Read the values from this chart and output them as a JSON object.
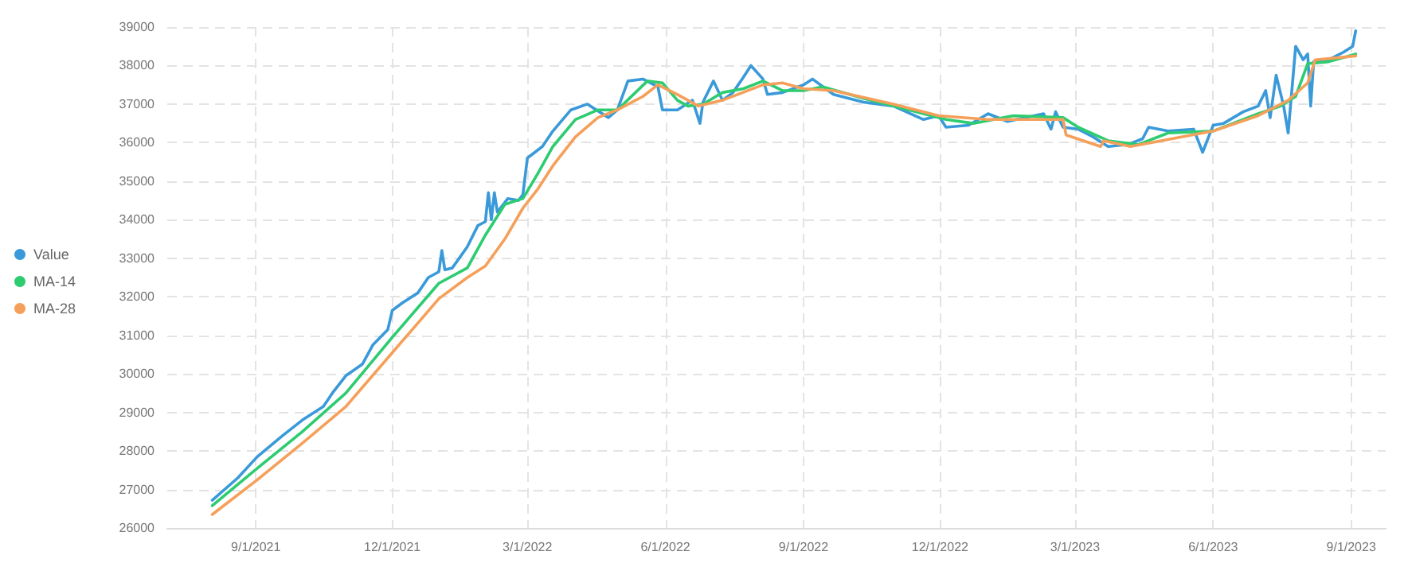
{
  "chart_data": {
    "type": "line",
    "xlim": [
      "2021-07-04",
      "2023-09-24"
    ],
    "xticks": [
      {
        "value": "2021-09-01",
        "label": "9/1/2021"
      },
      {
        "value": "2021-12-01",
        "label": "12/1/2021"
      },
      {
        "value": "2022-03-01",
        "label": "3/1/2022"
      },
      {
        "value": "2022-06-01",
        "label": "6/1/2022"
      },
      {
        "value": "2022-09-01",
        "label": "9/1/2022"
      },
      {
        "value": "2022-12-01",
        "label": "12/1/2022"
      },
      {
        "value": "2023-03-01",
        "label": "3/1/2023"
      },
      {
        "value": "2023-06-01",
        "label": "6/1/2023"
      },
      {
        "value": "2023-09-01",
        "label": "9/1/2023"
      }
    ],
    "ylim": [
      26000,
      39000
    ],
    "yticks": [
      26000,
      27000,
      28000,
      29000,
      30000,
      31000,
      32000,
      33000,
      34000,
      35000,
      36000,
      37000,
      38000,
      39000
    ],
    "grid": true,
    "legend": "left",
    "marker": "none",
    "line_style": "solid",
    "series": [
      {
        "name": "Value",
        "color": "#3a9ad9",
        "x": [
          "2021-08-03",
          "2021-08-20",
          "2021-09-02",
          "2021-09-19",
          "2021-10-02",
          "2021-10-16",
          "2021-10-22",
          "2021-10-31",
          "2021-11-11",
          "2021-11-18",
          "2021-11-28",
          "2021-12-01",
          "2021-12-08",
          "2021-12-18",
          "2021-12-25",
          "2022-01-01",
          "2022-01-03",
          "2022-01-05",
          "2022-01-10",
          "2022-01-20",
          "2022-01-27",
          "2022-02-01",
          "2022-02-03",
          "2022-02-05",
          "2022-02-07",
          "2022-02-09",
          "2022-02-16",
          "2022-02-23",
          "2022-02-26",
          "2022-03-01",
          "2022-03-11",
          "2022-03-18",
          "2022-03-30",
          "2022-04-10",
          "2022-04-24",
          "2022-04-30",
          "2022-05-07",
          "2022-05-17",
          "2022-05-27",
          "2022-05-30",
          "2022-06-09",
          "2022-06-19",
          "2022-06-24",
          "2022-06-26",
          "2022-07-03",
          "2022-07-09",
          "2022-07-16",
          "2022-07-23",
          "2022-07-28",
          "2022-08-05",
          "2022-08-08",
          "2022-08-18",
          "2022-09-01",
          "2022-09-07",
          "2022-09-21",
          "2022-10-11",
          "2022-10-31",
          "2022-11-20",
          "2022-11-30",
          "2022-12-05",
          "2022-12-20",
          "2023-01-02",
          "2023-01-15",
          "2023-02-08",
          "2023-02-13",
          "2023-02-16",
          "2023-02-21",
          "2023-03-03",
          "2023-03-13",
          "2023-03-23",
          "2023-04-05",
          "2023-04-15",
          "2023-04-19",
          "2023-05-02",
          "2023-05-19",
          "2023-05-25",
          "2023-06-01",
          "2023-06-08",
          "2023-06-21",
          "2023-07-01",
          "2023-07-06",
          "2023-07-09",
          "2023-07-13",
          "2023-07-18",
          "2023-07-21",
          "2023-07-26",
          "2023-07-31",
          "2023-08-03",
          "2023-08-05",
          "2023-08-07",
          "2023-08-17",
          "2023-08-27",
          "2023-09-02",
          "2023-09-04"
        ],
        "values": [
          26720,
          27300,
          27850,
          28400,
          28800,
          29150,
          29500,
          29950,
          30250,
          30750,
          31150,
          31650,
          31850,
          32100,
          32500,
          32650,
          33200,
          32700,
          32750,
          33300,
          33850,
          33950,
          34700,
          34000,
          34700,
          34200,
          34550,
          34500,
          34650,
          35600,
          35900,
          36300,
          36850,
          37000,
          36650,
          36850,
          37600,
          37650,
          37450,
          36850,
          36850,
          37100,
          36500,
          37050,
          37600,
          37100,
          37300,
          37700,
          38000,
          37650,
          37250,
          37300,
          37500,
          37650,
          37250,
          37050,
          36950,
          36600,
          36700,
          36400,
          36450,
          36750,
          36550,
          36750,
          36350,
          36800,
          36400,
          36350,
          36150,
          35900,
          35950,
          36100,
          36400,
          36300,
          36350,
          35750,
          36450,
          36500,
          36800,
          36950,
          37350,
          36650,
          37750,
          36950,
          36250,
          38500,
          38150,
          38300,
          36950,
          38100,
          38150,
          38350,
          38500,
          38900
        ]
      },
      {
        "name": "MA-14",
        "color": "#2ecc71",
        "x": [
          "2021-08-03",
          "2021-09-02",
          "2021-10-02",
          "2021-10-31",
          "2021-12-01",
          "2022-01-01",
          "2022-01-20",
          "2022-02-01",
          "2022-02-14",
          "2022-02-26",
          "2022-03-08",
          "2022-03-18",
          "2022-04-02",
          "2022-04-17",
          "2022-04-30",
          "2022-05-12",
          "2022-05-20",
          "2022-05-30",
          "2022-06-09",
          "2022-06-16",
          "2022-06-26",
          "2022-07-09",
          "2022-07-23",
          "2022-08-05",
          "2022-08-18",
          "2022-09-01",
          "2022-09-14",
          "2022-10-11",
          "2022-10-31",
          "2022-11-20",
          "2022-12-05",
          "2022-12-23",
          "2023-01-19",
          "2023-02-21",
          "2023-03-03",
          "2023-03-23",
          "2023-04-12",
          "2023-05-02",
          "2023-06-01",
          "2023-07-01",
          "2023-07-16",
          "2023-07-26",
          "2023-08-03",
          "2023-08-17",
          "2023-09-04"
        ],
        "values": [
          26580,
          27550,
          28500,
          29500,
          30950,
          32350,
          32750,
          33600,
          34400,
          34550,
          35200,
          35900,
          36600,
          36850,
          36850,
          37300,
          37600,
          37550,
          37100,
          36950,
          37000,
          37300,
          37400,
          37600,
          37350,
          37350,
          37450,
          37150,
          36950,
          36750,
          36600,
          36500,
          36700,
          36650,
          36400,
          36050,
          35950,
          36250,
          36300,
          36750,
          36950,
          37200,
          38050,
          38100,
          38300
        ]
      },
      {
        "name": "MA-28",
        "color": "#f5a05a",
        "x": [
          "2021-08-03",
          "2021-09-02",
          "2021-10-02",
          "2021-10-31",
          "2021-12-01",
          "2022-01-01",
          "2022-01-20",
          "2022-02-01",
          "2022-02-14",
          "2022-02-26",
          "2022-03-08",
          "2022-03-18",
          "2022-04-02",
          "2022-04-17",
          "2022-04-30",
          "2022-05-17",
          "2022-05-27",
          "2022-06-09",
          "2022-06-23",
          "2022-07-09",
          "2022-08-05",
          "2022-08-18",
          "2022-09-01",
          "2022-09-21",
          "2022-10-31",
          "2022-11-30",
          "2023-01-02",
          "2023-02-16",
          "2023-02-21",
          "2023-02-23",
          "2023-03-18",
          "2023-03-20",
          "2023-04-07",
          "2023-06-01",
          "2023-07-01",
          "2023-07-21",
          "2023-08-03",
          "2023-08-08",
          "2023-09-04"
        ],
        "values": [
          26350,
          27250,
          28200,
          29150,
          30550,
          31950,
          32500,
          32800,
          33500,
          34300,
          34800,
          35400,
          36150,
          36650,
          36850,
          37200,
          37500,
          37250,
          36950,
          37100,
          37500,
          37550,
          37400,
          37350,
          37000,
          36700,
          36600,
          36600,
          36600,
          36200,
          35900,
          36050,
          35900,
          36300,
          36700,
          37100,
          37550,
          38150,
          38250
        ]
      }
    ]
  }
}
